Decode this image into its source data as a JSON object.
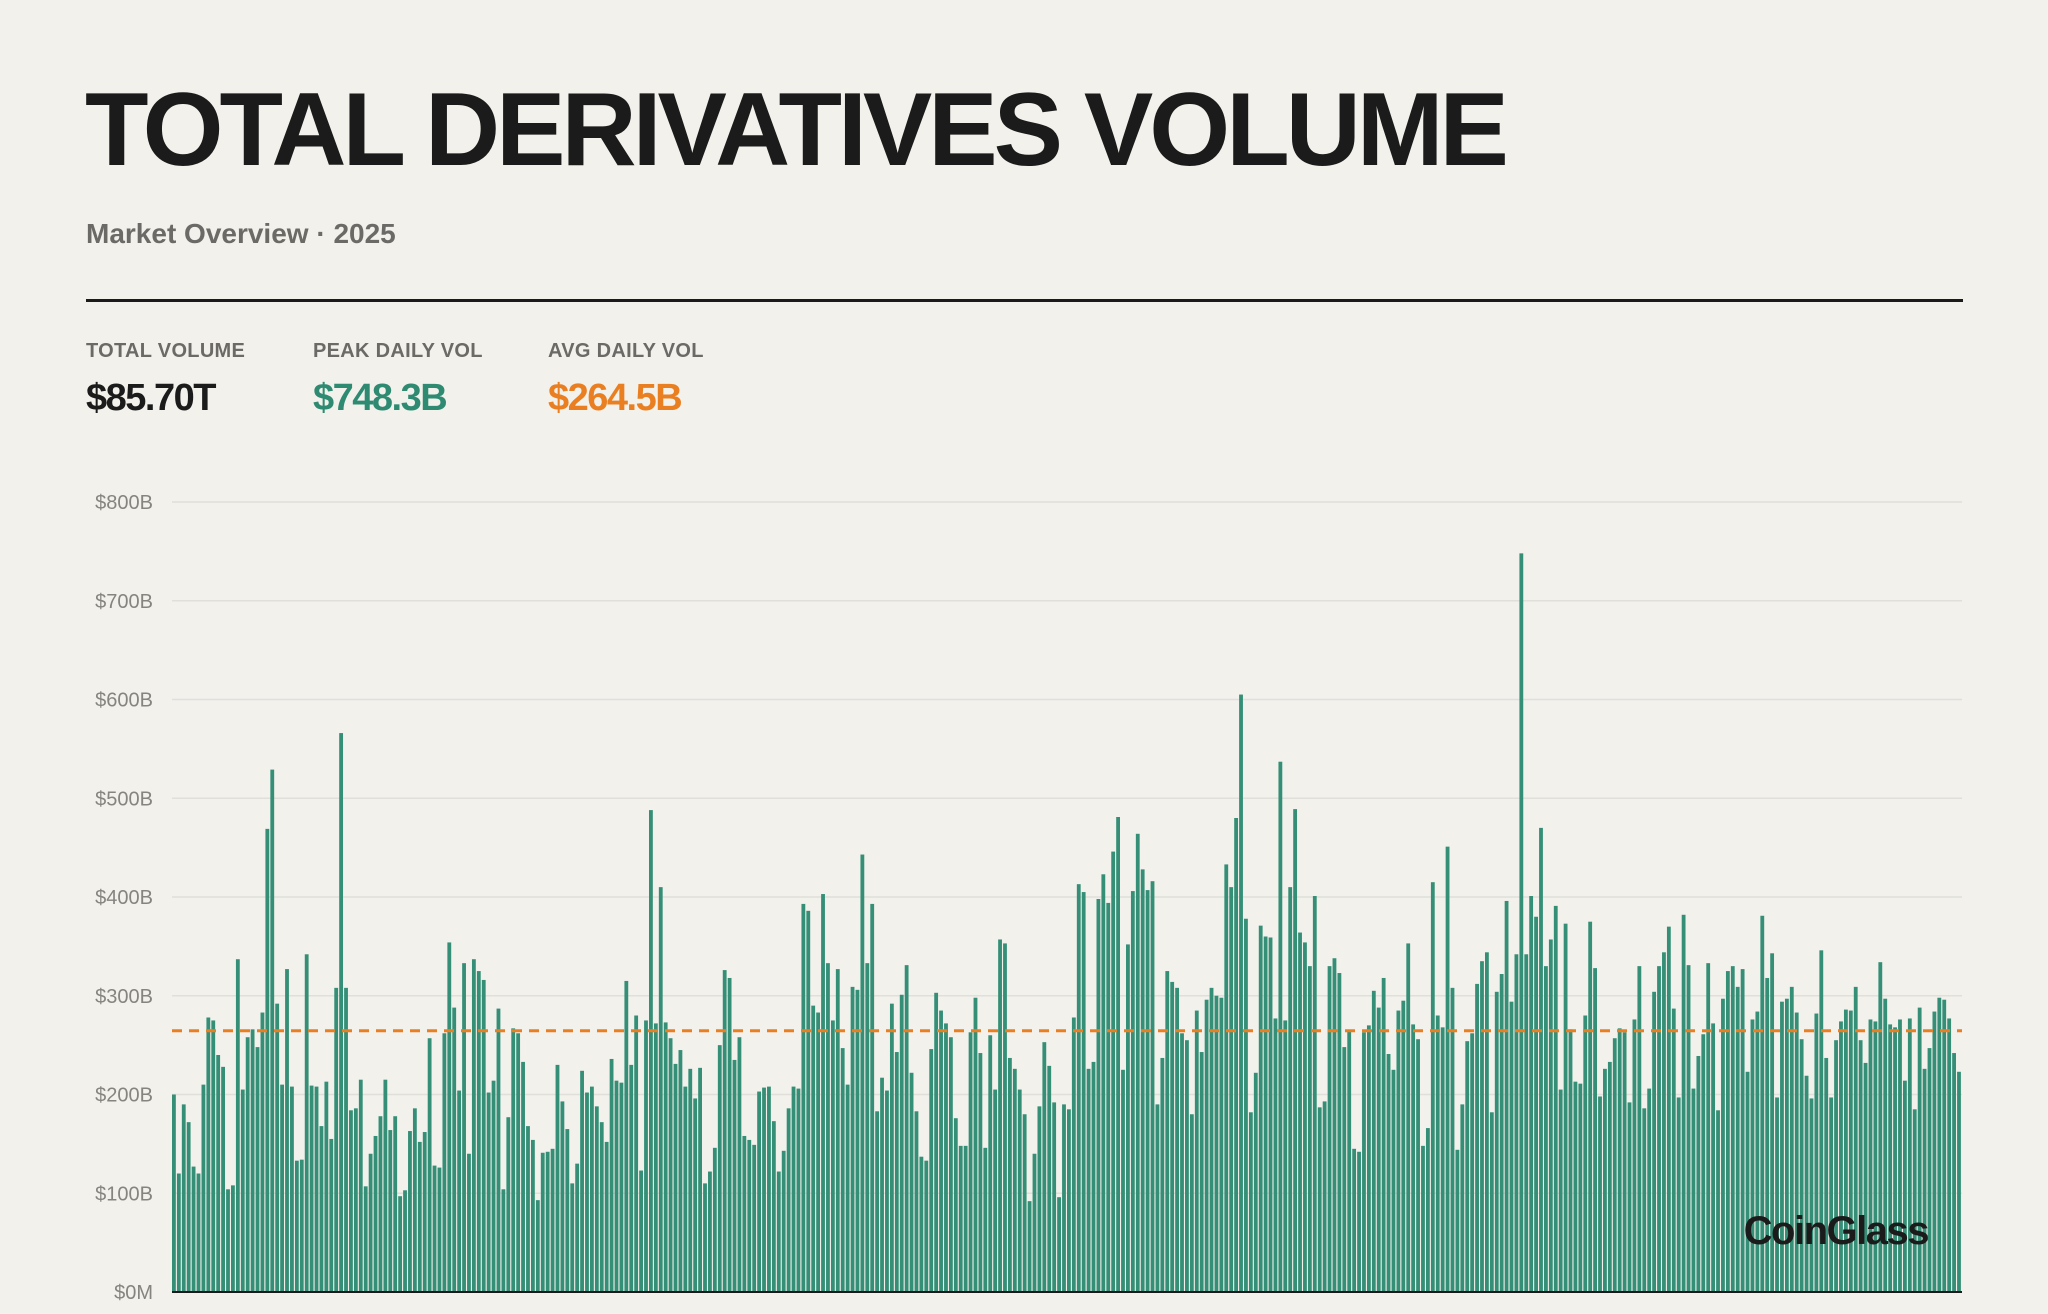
{
  "header": {
    "title": "TOTAL DERIVATIVES VOLUME",
    "subtitle": "Market Overview · 2025"
  },
  "stats": [
    {
      "label": "TOTAL VOLUME",
      "value": "$85.70T",
      "color": "#1b1b1b"
    },
    {
      "label": "PEAK DAILY VOL",
      "value": "$748.3B",
      "color": "#2e8b72"
    },
    {
      "label": "AVG DAILY VOL",
      "value": "$264.5B",
      "color": "#ea7f22"
    }
  ],
  "watermark": "CoinGlass",
  "colors": {
    "bar": "#358f77",
    "avg_line": "#ea7f22",
    "grid": "#e0dfda",
    "axis_text": "#85847f"
  },
  "chart_data": {
    "type": "bar",
    "title": "TOTAL DERIVATIVES VOLUME",
    "subtitle": "Market Overview · 2025",
    "unit": "billions USD",
    "ylim": [
      0,
      800
    ],
    "yticks": [
      0,
      100,
      200,
      300,
      400,
      500,
      600,
      700,
      800
    ],
    "ytick_labels": [
      "$0M",
      "$100B",
      "$200B",
      "$300B",
      "$400B",
      "$500B",
      "$600B",
      "$700B",
      "$800B"
    ],
    "grid": true,
    "average_line": 264.5,
    "values": [
      200,
      120,
      190,
      172,
      127,
      120,
      210,
      278,
      275,
      240,
      228,
      104,
      108,
      337,
      205,
      258,
      266,
      248,
      283,
      469,
      529,
      292,
      210,
      327,
      208,
      133,
      134,
      342,
      209,
      208,
      168,
      213,
      155,
      308,
      566,
      308,
      184,
      186,
      215,
      107,
      140,
      158,
      178,
      215,
      164,
      178,
      97,
      103,
      163,
      186,
      152,
      162,
      257,
      128,
      126,
      262,
      354,
      288,
      204,
      333,
      140,
      337,
      325,
      316,
      202,
      214,
      287,
      104,
      177,
      267,
      262,
      233,
      168,
      154,
      93,
      141,
      142,
      145,
      230,
      193,
      165,
      110,
      130,
      224,
      202,
      208,
      188,
      172,
      152,
      236,
      214,
      212,
      315,
      230,
      280,
      123,
      275,
      488,
      272,
      410,
      273,
      257,
      231,
      245,
      208,
      226,
      196,
      227,
      110,
      122,
      146,
      250,
      326,
      318,
      235,
      258,
      158,
      154,
      149,
      203,
      207,
      208,
      173,
      122,
      143,
      186,
      208,
      206,
      393,
      386,
      290,
      283,
      403,
      333,
      275,
      327,
      247,
      210,
      309,
      306,
      443,
      333,
      393,
      183,
      217,
      204,
      292,
      243,
      301,
      331,
      222,
      183,
      137,
      133,
      246,
      303,
      285,
      272,
      258,
      176,
      148,
      148,
      263,
      298,
      242,
      146,
      260,
      205,
      357,
      353,
      237,
      226,
      205,
      180,
      92,
      140,
      188,
      253,
      229,
      192,
      96,
      190,
      185,
      278,
      413,
      405,
      226,
      233,
      398,
      423,
      394,
      446,
      481,
      225,
      352,
      406,
      464,
      428,
      407,
      416,
      190,
      237,
      325,
      314,
      308,
      262,
      255,
      180,
      285,
      243,
      296,
      308,
      300,
      298,
      433,
      410,
      480,
      605,
      378,
      182,
      222,
      371,
      360,
      359,
      277,
      537,
      275,
      410,
      489,
      364,
      354,
      330,
      401,
      187,
      193,
      330,
      338,
      323,
      248,
      265,
      145,
      142,
      263,
      270,
      305,
      288,
      318,
      241,
      225,
      285,
      295,
      353,
      271,
      256,
      148,
      166,
      415,
      280,
      268,
      451,
      308,
      144,
      190,
      254,
      262,
      312,
      335,
      344,
      182,
      304,
      322,
      396,
      294,
      342,
      748,
      342,
      401,
      380,
      470,
      330,
      357,
      391,
      205,
      373,
      266,
      213,
      211,
      280,
      375,
      328,
      198,
      226,
      233,
      257,
      267,
      263,
      192,
      276,
      330,
      186,
      206,
      304,
      330,
      344,
      370,
      287,
      197,
      382,
      331,
      206,
      239,
      261,
      333,
      272,
      184,
      297,
      325,
      330,
      309,
      327,
      223,
      276,
      284,
      381,
      318,
      343,
      197,
      294,
      297,
      309,
      283,
      256,
      219,
      196,
      282,
      346,
      237,
      197,
      255,
      274,
      286,
      285,
      309,
      255,
      232,
      276,
      274,
      334,
      297,
      271,
      268,
      276,
      214,
      277,
      185,
      288,
      226,
      247,
      284,
      298,
      296,
      277,
      242,
      223
    ]
  }
}
